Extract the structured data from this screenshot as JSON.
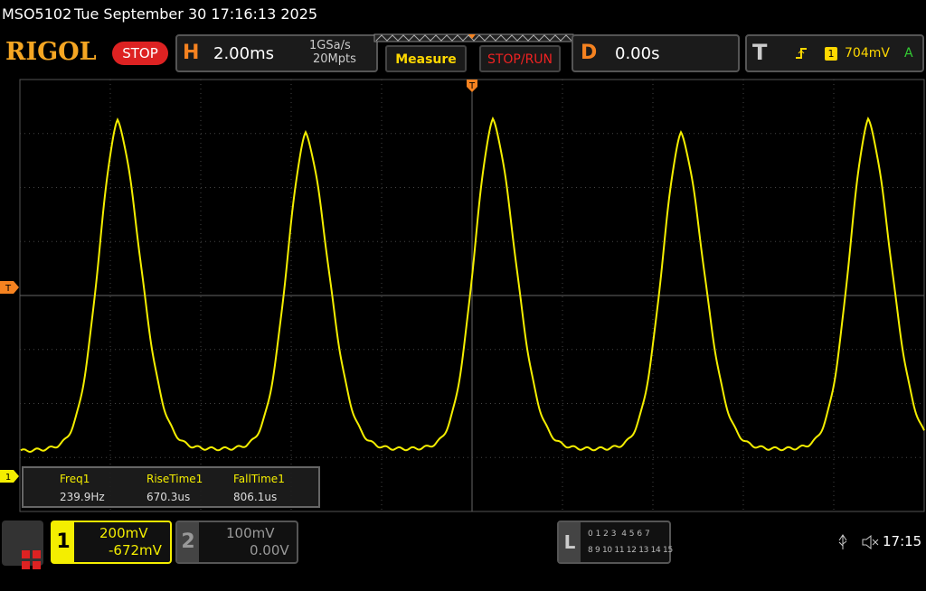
{
  "status_bar": {
    "model": "MSO5102",
    "datetime": "Tue September 30 17:16:13 2025"
  },
  "toolbar": {
    "logo": "RIGOL",
    "run_state": "STOP",
    "horizontal": {
      "label": "H",
      "timebase": "2.00ms",
      "sample_rate": "1GSa/s",
      "memory_depth": "20Mpts"
    },
    "measure_button": "Measure",
    "stop_run_button": "STOP/RUN",
    "delay": {
      "label": "D",
      "value": "0.00s"
    },
    "trigger": {
      "label": "T",
      "source": "1",
      "level": "704mV",
      "mode": "A"
    }
  },
  "screen": {
    "trigger_position_marker": "T",
    "trigger_level_marker": "T",
    "channel1_marker": "1"
  },
  "measurements": [
    {
      "name": "Freq1",
      "value": "239.9Hz"
    },
    {
      "name": "RiseTime1",
      "value": "670.3us"
    },
    {
      "name": "FallTime1",
      "value": "806.1us"
    }
  ],
  "bottom_bar": {
    "channel1": {
      "number": "1",
      "scale": "200mV",
      "offset": "-672mV"
    },
    "channel2": {
      "number": "2",
      "scale": "100mV",
      "offset": "0.00V"
    },
    "logic": {
      "label": "L",
      "row1": "0 1 2 3  4 5 6 7",
      "row2": "8 9 10 11 12 13 14 15"
    },
    "clock": "17:15"
  }
}
